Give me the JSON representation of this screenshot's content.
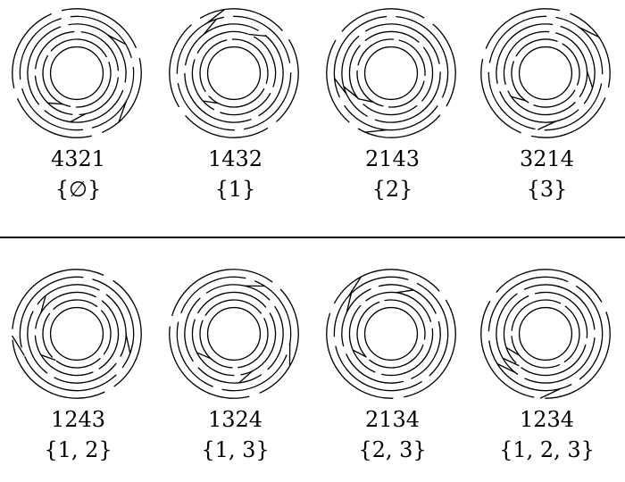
{
  "figures": [
    {
      "permutation": "4321",
      "subset": "{∅}"
    },
    {
      "permutation": "1432",
      "subset": "{1}"
    },
    {
      "permutation": "2143",
      "subset": "{2}"
    },
    {
      "permutation": "3214",
      "subset": "{3}"
    },
    {
      "permutation": "1243",
      "subset": "{1, 2}"
    },
    {
      "permutation": "1324",
      "subset": "{1, 3}"
    },
    {
      "permutation": "2134",
      "subset": "{2, 3}"
    },
    {
      "permutation": "1234",
      "subset": "{1, 2, 3}"
    }
  ]
}
